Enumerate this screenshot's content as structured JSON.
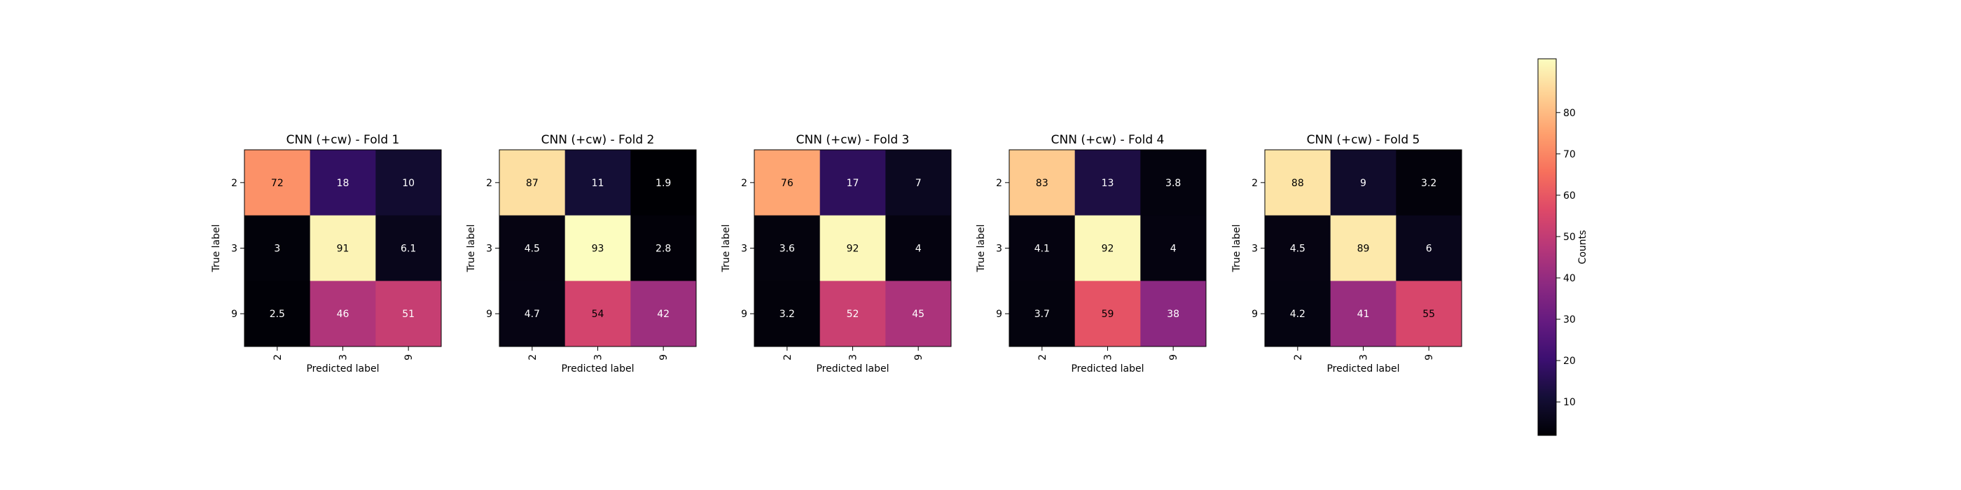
{
  "colormap": "magma",
  "colorbar": {
    "label": "Counts",
    "ticks": [
      10,
      20,
      30,
      40,
      50,
      60,
      70,
      80
    ],
    "vmin": 1.9,
    "vmax": 93
  },
  "chart_data": [
    {
      "type": "heatmap",
      "title": "CNN (+cw) - Fold 1",
      "xlabel": "Predicted label",
      "ylabel": "True label",
      "x_categories": [
        "2",
        "3",
        "9"
      ],
      "y_categories": [
        "2",
        "3",
        "9"
      ],
      "values": [
        [
          72,
          18,
          10
        ],
        [
          3,
          91,
          6.1
        ],
        [
          2.5,
          46,
          51
        ]
      ]
    },
    {
      "type": "heatmap",
      "title": "CNN (+cw) - Fold 2",
      "xlabel": "Predicted label",
      "ylabel": "True label",
      "x_categories": [
        "2",
        "3",
        "9"
      ],
      "y_categories": [
        "2",
        "3",
        "9"
      ],
      "values": [
        [
          87,
          11,
          1.9
        ],
        [
          4.5,
          93,
          2.8
        ],
        [
          4.7,
          54,
          42
        ]
      ]
    },
    {
      "type": "heatmap",
      "title": "CNN (+cw) - Fold 3",
      "xlabel": "Predicted label",
      "ylabel": "True label",
      "x_categories": [
        "2",
        "3",
        "9"
      ],
      "y_categories": [
        "2",
        "3",
        "9"
      ],
      "values": [
        [
          76,
          17,
          7
        ],
        [
          3.6,
          92,
          4
        ],
        [
          3.2,
          52,
          45
        ]
      ]
    },
    {
      "type": "heatmap",
      "title": "CNN (+cw) - Fold 4",
      "xlabel": "Predicted label",
      "ylabel": "True label",
      "x_categories": [
        "2",
        "3",
        "9"
      ],
      "y_categories": [
        "2",
        "3",
        "9"
      ],
      "values": [
        [
          83,
          13,
          3.8
        ],
        [
          4.1,
          92,
          4
        ],
        [
          3.7,
          59,
          38
        ]
      ]
    },
    {
      "type": "heatmap",
      "title": "CNN (+cw) - Fold 5",
      "xlabel": "Predicted label",
      "ylabel": "True label",
      "x_categories": [
        "2",
        "3",
        "9"
      ],
      "y_categories": [
        "2",
        "3",
        "9"
      ],
      "values": [
        [
          88,
          9,
          3.2
        ],
        [
          4.5,
          89,
          6
        ],
        [
          4.2,
          41,
          55
        ]
      ]
    }
  ]
}
